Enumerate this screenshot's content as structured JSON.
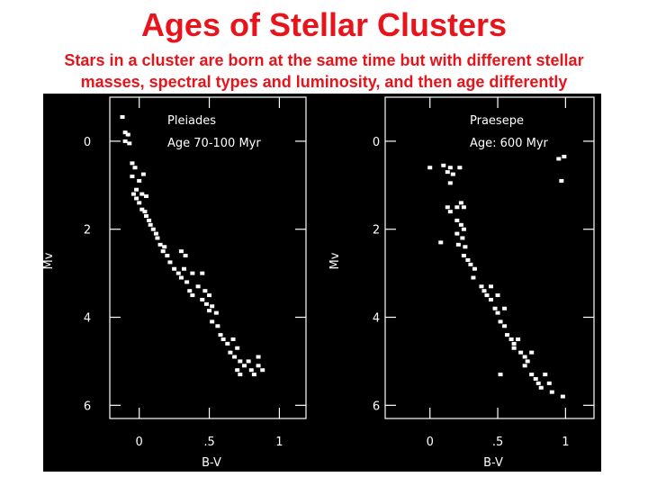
{
  "title": "Ages of Stellar Clusters",
  "subtitle": [
    "Stars in a cluster are born at the same time but with different stellar",
    "masses, spectral types and luminosity, and then age differently"
  ],
  "chart_data": [
    {
      "type": "scatter",
      "xlabel": "B-V",
      "ylabel": "Mv",
      "annotations": [
        "Pleiades",
        "Age 70-100 Myr"
      ],
      "color": "#ffffff",
      "xlim": [
        -0.21,
        1.19
      ],
      "ylim": [
        -1,
        6.3
      ],
      "y_inverted": true,
      "xticks": [
        0,
        {
          "value": 0.5,
          "label": ".5"
        },
        1
      ],
      "yticks": [
        0,
        2,
        4,
        6
      ],
      "x": [
        -0.12,
        -0.1,
        -0.08,
        -0.1,
        -0.07,
        -0.05,
        -0.03,
        -0.05,
        0.0,
        0.03,
        -0.02,
        -0.04,
        -0.02,
        0.02,
        0.05,
        0.0,
        0.02,
        0.04,
        0.05,
        0.07,
        0.08,
        0.1,
        0.12,
        0.13,
        0.15,
        0.18,
        0.17,
        0.2,
        0.22,
        0.3,
        0.33,
        0.25,
        0.28,
        0.32,
        0.3,
        0.34,
        0.38,
        0.45,
        0.36,
        0.38,
        0.42,
        0.47,
        0.5,
        0.45,
        0.48,
        0.52,
        0.5,
        0.55,
        0.52,
        0.56,
        0.58,
        0.6,
        0.63,
        0.67,
        0.7,
        0.65,
        0.68,
        0.72,
        0.75,
        0.78,
        0.85,
        0.8,
        0.7,
        0.72,
        0.82,
        0.88,
        0.85
      ],
      "values": [
        -0.55,
        -0.2,
        -0.15,
        0.0,
        0.05,
        0.5,
        0.6,
        0.8,
        0.9,
        0.75,
        1.1,
        1.2,
        1.3,
        1.2,
        1.25,
        1.4,
        1.55,
        1.6,
        1.7,
        1.8,
        1.9,
        2.0,
        2.1,
        2.2,
        2.35,
        2.4,
        2.5,
        2.6,
        2.75,
        2.5,
        2.6,
        2.9,
        3.0,
        2.9,
        3.1,
        3.2,
        3.0,
        3.0,
        3.4,
        3.5,
        3.3,
        3.4,
        3.5,
        3.6,
        3.7,
        3.75,
        3.85,
        3.9,
        4.1,
        4.2,
        4.4,
        4.5,
        4.6,
        4.5,
        4.7,
        4.8,
        4.9,
        5.0,
        5.1,
        5.0,
        4.9,
        5.2,
        5.2,
        5.3,
        5.3,
        5.2,
        5.1
      ]
    },
    {
      "type": "scatter",
      "xlabel": "B-V",
      "ylabel": "Mv",
      "annotations": [
        "Praesepe",
        "Age: 600 Myr"
      ],
      "color": "#ffffff",
      "xlim": [
        -0.33,
        1.21
      ],
      "ylim": [
        -1,
        6.3
      ],
      "y_inverted": true,
      "xticks": [
        0,
        {
          "value": 0.5,
          "label": ".5"
        },
        1
      ],
      "yticks": [
        0,
        2,
        4,
        6
      ],
      "x": [
        0.0,
        0.1,
        0.15,
        0.22,
        0.17,
        0.13,
        0.15,
        0.13,
        0.15,
        0.2,
        0.23,
        0.25,
        0.2,
        0.23,
        0.25,
        0.2,
        0.24,
        0.21,
        0.26,
        0.08,
        0.25,
        0.28,
        0.3,
        0.33,
        0.32,
        0.38,
        0.4,
        0.45,
        0.42,
        0.45,
        0.5,
        0.48,
        0.5,
        0.55,
        0.52,
        0.55,
        0.57,
        0.6,
        0.62,
        0.65,
        0.62,
        0.67,
        0.7,
        0.75,
        0.72,
        0.7,
        0.75,
        0.78,
        0.8,
        0.85,
        0.82,
        0.88,
        0.9,
        0.52,
        0.98,
        0.95,
        0.99,
        0.97
      ],
      "values": [
        0.6,
        0.55,
        0.6,
        0.6,
        0.75,
        0.7,
        0.95,
        1.5,
        1.6,
        1.5,
        1.4,
        1.5,
        1.8,
        1.9,
        2.0,
        2.1,
        2.2,
        2.35,
        2.4,
        2.3,
        2.6,
        2.7,
        2.8,
        2.9,
        3.1,
        3.3,
        3.4,
        3.3,
        3.5,
        3.6,
        3.5,
        3.8,
        3.9,
        3.8,
        4.1,
        4.2,
        4.4,
        4.5,
        4.6,
        4.5,
        4.7,
        4.8,
        4.9,
        4.8,
        5.0,
        5.1,
        5.3,
        5.4,
        5.5,
        5.3,
        5.6,
        5.5,
        5.7,
        5.3,
        5.8,
        0.4,
        0.35,
        0.9
      ]
    }
  ]
}
